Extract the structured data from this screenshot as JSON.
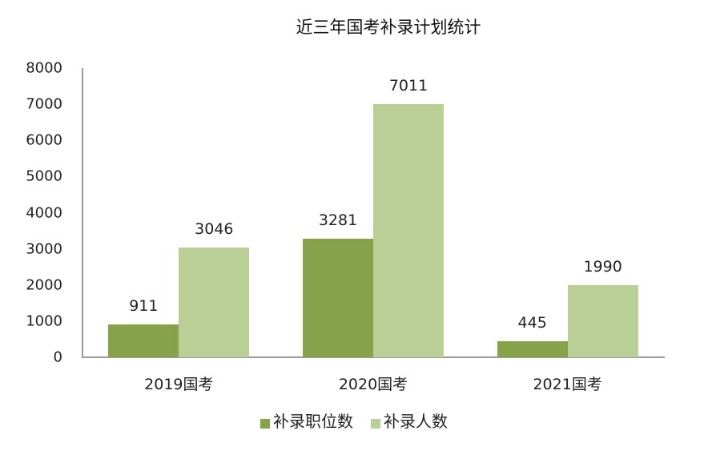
{
  "title": "近三年国考补录计划统计",
  "colors": {
    "series1": "#86a34a",
    "series2": "#b9cf95",
    "axis": "#9a9a9a"
  },
  "chart_data": {
    "type": "bar",
    "title": "近三年国考补录计划统计",
    "categories": [
      "2019国考",
      "2020国考",
      "2021国考"
    ],
    "series": [
      {
        "name": "补录职位数",
        "values": [
          911,
          3281,
          445
        ],
        "color": "#86a34a"
      },
      {
        "name": "补录人数",
        "values": [
          3046,
          7011,
          1990
        ],
        "color": "#b9cf95"
      }
    ],
    "xlabel": "",
    "ylabel": "",
    "ylim": [
      0,
      8000
    ],
    "yticks": [
      0,
      1000,
      2000,
      3000,
      4000,
      5000,
      6000,
      7000,
      8000
    ],
    "grid": false,
    "legend_position": "bottom",
    "data_labels": true
  },
  "yticks": [
    "0",
    "1000",
    "2000",
    "3000",
    "4000",
    "5000",
    "6000",
    "7000",
    "8000"
  ],
  "categories": [
    "2019国考",
    "2020国考",
    "2021国考"
  ],
  "labels": {
    "s1": [
      "911",
      "3281",
      "445"
    ],
    "s2": [
      "3046",
      "7011",
      "1990"
    ]
  },
  "legend": [
    "补录职位数",
    "补录人数"
  ]
}
